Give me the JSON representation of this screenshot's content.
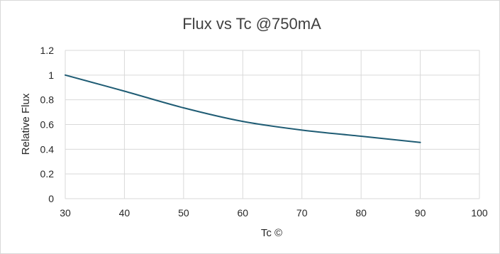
{
  "chart_data": {
    "type": "line",
    "title": "Flux vs Tc @750mA",
    "xlabel": "Tc ©",
    "ylabel": "Relative Flux",
    "xlim": [
      30,
      100
    ],
    "ylim": [
      0,
      1.2
    ],
    "x_ticks": [
      30,
      40,
      50,
      60,
      70,
      80,
      90,
      100
    ],
    "y_ticks": [
      0,
      0.2,
      0.4,
      0.6,
      0.8,
      1,
      1.2
    ],
    "grid": true,
    "legend": "none",
    "series": [
      {
        "color": "#1f5c74",
        "x": [
          30,
          40,
          50,
          60,
          70,
          80,
          90
        ],
        "y": [
          1.0,
          0.87,
          0.735,
          0.625,
          0.555,
          0.505,
          0.455
        ]
      }
    ]
  }
}
